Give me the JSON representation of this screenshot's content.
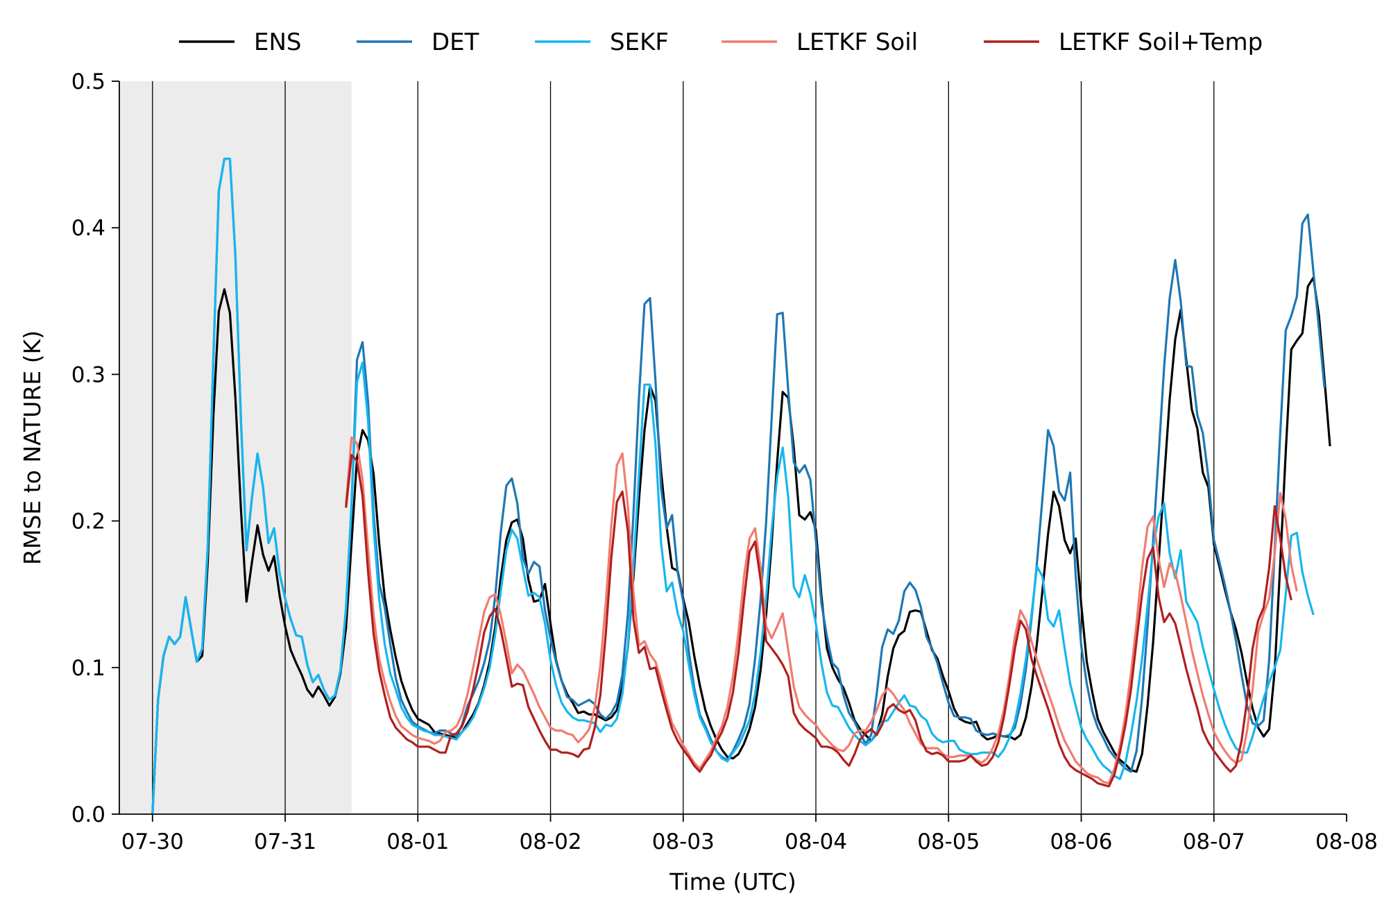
{
  "chart_data": {
    "type": "line",
    "xlabel": "Time (UTC)",
    "ylabel": "RMSE to NATURE (K)",
    "ylim": [
      0,
      0.5
    ],
    "yticks": [
      "0.0",
      "0.1",
      "0.2",
      "0.3",
      "0.4",
      "0.5"
    ],
    "xticks": [
      "07-30",
      "07-31",
      "08-01",
      "08-02",
      "08-03",
      "08-04",
      "08-05",
      "08-06",
      "08-07",
      "08-08"
    ],
    "x_unit": "hours since 07-30 00 UTC",
    "xlim_hours": [
      -6,
      216
    ],
    "spinup_shade_hours": [
      -6,
      36
    ],
    "vertical_lines_at_ticks": true,
    "legend_position": "top-center",
    "sample_interval_hours": 1,
    "series": [
      {
        "name": "ENS",
        "color": "#000000",
        "start_hour": 0,
        "values": [
          0.0,
          0.078,
          0.108,
          0.121,
          0.116,
          0.121,
          0.148,
          0.126,
          0.104,
          0.108,
          0.172,
          0.271,
          0.343,
          0.358,
          0.342,
          0.284,
          0.208,
          0.145,
          0.172,
          0.197,
          0.177,
          0.166,
          0.176,
          0.149,
          0.128,
          0.112,
          0.103,
          0.095,
          0.085,
          0.08,
          0.087,
          0.081,
          0.074,
          0.08,
          0.096,
          0.127,
          0.185,
          0.243,
          0.262,
          0.255,
          0.232,
          0.185,
          0.148,
          0.126,
          0.107,
          0.091,
          0.08,
          0.071,
          0.065,
          0.063,
          0.061,
          0.056,
          0.055,
          0.054,
          0.053,
          0.052,
          0.056,
          0.062,
          0.068,
          0.076,
          0.088,
          0.104,
          0.128,
          0.161,
          0.187,
          0.199,
          0.201,
          0.188,
          0.16,
          0.145,
          0.146,
          0.157,
          0.13,
          0.105,
          0.091,
          0.082,
          0.076,
          0.069,
          0.07,
          0.068,
          0.068,
          0.066,
          0.064,
          0.066,
          0.071,
          0.087,
          0.114,
          0.162,
          0.214,
          0.262,
          0.292,
          0.282,
          0.234,
          0.196,
          0.168,
          0.166,
          0.147,
          0.131,
          0.108,
          0.088,
          0.071,
          0.06,
          0.051,
          0.044,
          0.039,
          0.038,
          0.041,
          0.048,
          0.058,
          0.073,
          0.098,
          0.136,
          0.185,
          0.24,
          0.288,
          0.284,
          0.25,
          0.204,
          0.201,
          0.206,
          0.194,
          0.149,
          0.113,
          0.1,
          0.092,
          0.086,
          0.076,
          0.064,
          0.058,
          0.054,
          0.05,
          0.055,
          0.068,
          0.094,
          0.113,
          0.122,
          0.125,
          0.138,
          0.139,
          0.138,
          0.125,
          0.112,
          0.106,
          0.094,
          0.084,
          0.072,
          0.065,
          0.063,
          0.062,
          0.063,
          0.054,
          0.051,
          0.052,
          0.054,
          0.053,
          0.053,
          0.051,
          0.054,
          0.066,
          0.087,
          0.117,
          0.153,
          0.191,
          0.22,
          0.21,
          0.187,
          0.178,
          0.188,
          0.143,
          0.104,
          0.083,
          0.065,
          0.056,
          0.049,
          0.042,
          0.037,
          0.034,
          0.03,
          0.029,
          0.041,
          0.074,
          0.117,
          0.172,
          0.228,
          0.283,
          0.324,
          0.344,
          0.31,
          0.276,
          0.263,
          0.233,
          0.223,
          0.184,
          0.169,
          0.153,
          0.138,
          0.126,
          0.11,
          0.09,
          0.072,
          0.059,
          0.053,
          0.058,
          0.098,
          0.171,
          0.247,
          0.317,
          0.323,
          0.328,
          0.36,
          0.366,
          0.34,
          0.297,
          0.251
        ]
      },
      {
        "name": "DET",
        "color": "#1f77b4",
        "start_hour": 0,
        "values": [
          0.0,
          0.078,
          0.108,
          0.121,
          0.116,
          0.121,
          0.148,
          0.126,
          0.104,
          0.113,
          0.183,
          0.31,
          0.425,
          0.447,
          0.447,
          0.381,
          0.269,
          0.18,
          0.216,
          0.246,
          0.223,
          0.185,
          0.195,
          0.164,
          0.147,
          0.133,
          0.122,
          0.121,
          0.102,
          0.09,
          0.095,
          0.085,
          0.078,
          0.081,
          0.098,
          0.14,
          0.21,
          0.31,
          0.322,
          0.281,
          0.205,
          0.158,
          0.141,
          0.116,
          0.093,
          0.078,
          0.07,
          0.063,
          0.06,
          0.058,
          0.056,
          0.055,
          0.057,
          0.057,
          0.055,
          0.053,
          0.061,
          0.074,
          0.082,
          0.091,
          0.103,
          0.119,
          0.149,
          0.192,
          0.224,
          0.229,
          0.212,
          0.175,
          0.164,
          0.172,
          0.169,
          0.139,
          0.12,
          0.104,
          0.091,
          0.08,
          0.078,
          0.074,
          0.076,
          0.078,
          0.075,
          0.068,
          0.065,
          0.069,
          0.076,
          0.095,
          0.137,
          0.205,
          0.284,
          0.348,
          0.352,
          0.295,
          0.222,
          0.195,
          0.204,
          0.165,
          0.145,
          0.111,
          0.086,
          0.068,
          0.06,
          0.051,
          0.043,
          0.039,
          0.037,
          0.043,
          0.051,
          0.06,
          0.075,
          0.106,
          0.146,
          0.199,
          0.27,
          0.341,
          0.342,
          0.289,
          0.24,
          0.233,
          0.238,
          0.228,
          0.187,
          0.144,
          0.121,
          0.103,
          0.099,
          0.081,
          0.069,
          0.063,
          0.055,
          0.048,
          0.054,
          0.082,
          0.114,
          0.126,
          0.123,
          0.132,
          0.152,
          0.158,
          0.153,
          0.141,
          0.121,
          0.113,
          0.103,
          0.089,
          0.076,
          0.067,
          0.066,
          0.066,
          0.065,
          0.057,
          0.055,
          0.054,
          0.055,
          0.054,
          0.053,
          0.054,
          0.059,
          0.075,
          0.099,
          0.133,
          0.172,
          0.216,
          0.262,
          0.251,
          0.22,
          0.214,
          0.233,
          0.163,
          0.115,
          0.089,
          0.07,
          0.059,
          0.052,
          0.044,
          0.039,
          0.035,
          0.031,
          0.029,
          0.043,
          0.079,
          0.128,
          0.186,
          0.245,
          0.305,
          0.352,
          0.378,
          0.35,
          0.306,
          0.305,
          0.272,
          0.26,
          0.23,
          0.187,
          0.172,
          0.156,
          0.138,
          0.118,
          0.095,
          0.074,
          0.062,
          0.06,
          0.064,
          0.105,
          0.18,
          0.26,
          0.33,
          0.34,
          0.353,
          0.403,
          0.409,
          0.37,
          0.331,
          0.291
        ]
      },
      {
        "name": "SEKF",
        "color": "#17b6ee",
        "start_hour": 0,
        "values": [
          0.0,
          0.078,
          0.108,
          0.121,
          0.116,
          0.121,
          0.148,
          0.126,
          0.104,
          0.113,
          0.183,
          0.31,
          0.425,
          0.447,
          0.447,
          0.381,
          0.269,
          0.18,
          0.216,
          0.246,
          0.223,
          0.185,
          0.195,
          0.164,
          0.147,
          0.133,
          0.122,
          0.121,
          0.102,
          0.09,
          0.095,
          0.085,
          0.078,
          0.081,
          0.098,
          0.14,
          0.21,
          0.295,
          0.308,
          0.268,
          0.196,
          0.147,
          0.116,
          0.096,
          0.085,
          0.073,
          0.066,
          0.061,
          0.059,
          0.057,
          0.056,
          0.054,
          0.054,
          0.053,
          0.052,
          0.051,
          0.056,
          0.06,
          0.066,
          0.075,
          0.086,
          0.1,
          0.123,
          0.152,
          0.18,
          0.194,
          0.188,
          0.168,
          0.149,
          0.151,
          0.148,
          0.13,
          0.105,
          0.088,
          0.076,
          0.07,
          0.066,
          0.064,
          0.064,
          0.063,
          0.062,
          0.056,
          0.061,
          0.06,
          0.065,
          0.082,
          0.115,
          0.169,
          0.232,
          0.293,
          0.293,
          0.252,
          0.185,
          0.152,
          0.158,
          0.137,
          0.125,
          0.102,
          0.082,
          0.066,
          0.058,
          0.049,
          0.043,
          0.038,
          0.036,
          0.042,
          0.047,
          0.055,
          0.064,
          0.082,
          0.11,
          0.147,
          0.194,
          0.23,
          0.25,
          0.216,
          0.155,
          0.148,
          0.163,
          0.15,
          0.13,
          0.103,
          0.083,
          0.074,
          0.073,
          0.066,
          0.059,
          0.054,
          0.05,
          0.047,
          0.05,
          0.056,
          0.063,
          0.064,
          0.07,
          0.076,
          0.081,
          0.074,
          0.073,
          0.067,
          0.064,
          0.055,
          0.051,
          0.049,
          0.05,
          0.05,
          0.044,
          0.042,
          0.041,
          0.041,
          0.042,
          0.042,
          0.042,
          0.039,
          0.044,
          0.052,
          0.063,
          0.082,
          0.106,
          0.136,
          0.169,
          0.162,
          0.133,
          0.128,
          0.139,
          0.113,
          0.089,
          0.074,
          0.059,
          0.051,
          0.045,
          0.038,
          0.033,
          0.03,
          0.026,
          0.024,
          0.035,
          0.054,
          0.077,
          0.106,
          0.142,
          0.182,
          0.203,
          0.212,
          0.178,
          0.161,
          0.18,
          0.145,
          0.138,
          0.131,
          0.114,
          0.099,
          0.085,
          0.072,
          0.061,
          0.052,
          0.045,
          0.042,
          0.042,
          0.053,
          0.066,
          0.079,
          0.09,
          0.1,
          0.112,
          0.15,
          0.19,
          0.192,
          0.165,
          0.149,
          0.136
        ]
      },
      {
        "name": "LETKF Soil",
        "color": "#f07c70",
        "start_hour": 35,
        "values": [
          0.211,
          0.257,
          0.253,
          0.228,
          0.181,
          0.136,
          0.106,
          0.09,
          0.077,
          0.067,
          0.06,
          0.057,
          0.054,
          0.052,
          0.051,
          0.05,
          0.048,
          0.05,
          0.056,
          0.057,
          0.06,
          0.068,
          0.082,
          0.1,
          0.119,
          0.138,
          0.148,
          0.15,
          0.136,
          0.117,
          0.096,
          0.102,
          0.098,
          0.09,
          0.082,
          0.073,
          0.066,
          0.059,
          0.057,
          0.057,
          0.055,
          0.054,
          0.049,
          0.053,
          0.058,
          0.073,
          0.101,
          0.144,
          0.197,
          0.238,
          0.246,
          0.21,
          0.151,
          0.115,
          0.118,
          0.109,
          0.104,
          0.091,
          0.076,
          0.062,
          0.055,
          0.047,
          0.041,
          0.035,
          0.031,
          0.037,
          0.043,
          0.052,
          0.06,
          0.073,
          0.094,
          0.124,
          0.162,
          0.188,
          0.195,
          0.168,
          0.128,
          0.12,
          0.128,
          0.137,
          0.112,
          0.087,
          0.073,
          0.068,
          0.064,
          0.061,
          0.055,
          0.051,
          0.047,
          0.044,
          0.043,
          0.047,
          0.055,
          0.057,
          0.057,
          0.063,
          0.071,
          0.081,
          0.086,
          0.082,
          0.076,
          0.071,
          0.062,
          0.055,
          0.048,
          0.045,
          0.045,
          0.045,
          0.041,
          0.039,
          0.039,
          0.04,
          0.04,
          0.04,
          0.037,
          0.035,
          0.038,
          0.045,
          0.055,
          0.071,
          0.094,
          0.121,
          0.139,
          0.132,
          0.118,
          0.105,
          0.094,
          0.083,
          0.072,
          0.06,
          0.05,
          0.043,
          0.036,
          0.032,
          0.028,
          0.026,
          0.025,
          0.022,
          0.021,
          0.031,
          0.046,
          0.068,
          0.096,
          0.13,
          0.168,
          0.196,
          0.203,
          0.174,
          0.155,
          0.171,
          0.165,
          0.149,
          0.131,
          0.112,
          0.096,
          0.081,
          0.068,
          0.056,
          0.049,
          0.043,
          0.038,
          0.035,
          0.037,
          0.057,
          0.085,
          0.124,
          0.137,
          0.147,
          0.178,
          0.219,
          0.201,
          0.17,
          0.152
        ]
      },
      {
        "name": "LETKF Soil+Temp",
        "color": "#b11f1e",
        "start_hour": 35,
        "values": [
          0.209,
          0.245,
          0.241,
          0.217,
          0.165,
          0.123,
          0.098,
          0.081,
          0.066,
          0.059,
          0.055,
          0.051,
          0.049,
          0.046,
          0.046,
          0.046,
          0.044,
          0.042,
          0.042,
          0.054,
          0.055,
          0.06,
          0.07,
          0.085,
          0.103,
          0.124,
          0.135,
          0.14,
          0.126,
          0.107,
          0.087,
          0.089,
          0.088,
          0.073,
          0.065,
          0.057,
          0.05,
          0.044,
          0.044,
          0.042,
          0.042,
          0.041,
          0.039,
          0.044,
          0.045,
          0.059,
          0.081,
          0.123,
          0.175,
          0.213,
          0.22,
          0.193,
          0.133,
          0.11,
          0.114,
          0.099,
          0.1,
          0.085,
          0.071,
          0.058,
          0.05,
          0.044,
          0.039,
          0.033,
          0.029,
          0.035,
          0.04,
          0.049,
          0.056,
          0.066,
          0.083,
          0.11,
          0.146,
          0.179,
          0.186,
          0.16,
          0.118,
          0.113,
          0.108,
          0.102,
          0.094,
          0.069,
          0.062,
          0.058,
          0.055,
          0.052,
          0.046,
          0.046,
          0.045,
          0.042,
          0.037,
          0.033,
          0.041,
          0.051,
          0.055,
          0.058,
          0.054,
          0.061,
          0.072,
          0.075,
          0.071,
          0.069,
          0.071,
          0.064,
          0.051,
          0.043,
          0.041,
          0.042,
          0.04,
          0.036,
          0.036,
          0.036,
          0.037,
          0.04,
          0.036,
          0.033,
          0.034,
          0.039,
          0.049,
          0.066,
          0.088,
          0.113,
          0.132,
          0.126,
          0.106,
          0.094,
          0.083,
          0.072,
          0.06,
          0.048,
          0.039,
          0.033,
          0.03,
          0.028,
          0.026,
          0.024,
          0.021,
          0.02,
          0.019,
          0.027,
          0.042,
          0.061,
          0.085,
          0.118,
          0.15,
          0.174,
          0.182,
          0.148,
          0.131,
          0.137,
          0.13,
          0.115,
          0.099,
          0.085,
          0.072,
          0.057,
          0.049,
          0.043,
          0.038,
          0.033,
          0.029,
          0.033,
          0.05,
          0.078,
          0.113,
          0.132,
          0.141,
          0.168,
          0.21,
          0.188,
          0.162,
          0.146
        ]
      }
    ]
  }
}
